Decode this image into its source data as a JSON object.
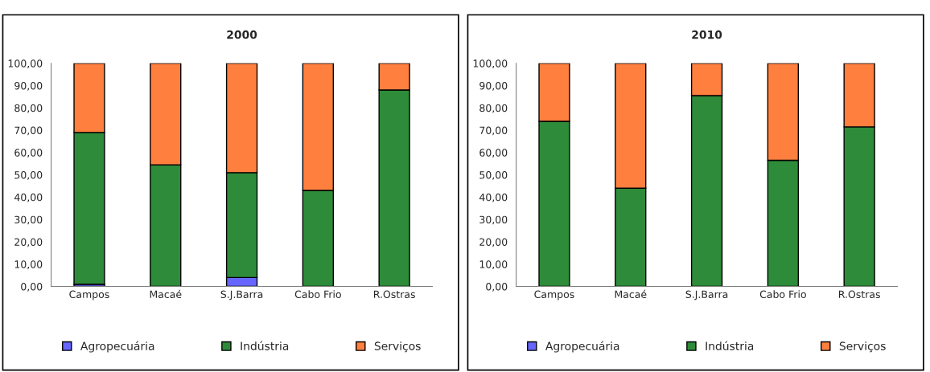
{
  "chart_data": [
    {
      "type": "bar",
      "title": "2000",
      "stacked": true,
      "legend": "bottom",
      "grid": false,
      "categories": [
        "Campos",
        "Macaé",
        "S.J.Barra",
        "Cabo Frio",
        "R.Ostras"
      ],
      "series": [
        {
          "name": "Agropecuária",
          "color": "#6666ff",
          "values": [
            1,
            0,
            4,
            0,
            0
          ]
        },
        {
          "name": "Indústria",
          "color": "#2e8b3a",
          "values": [
            68,
            54.5,
            47,
            43,
            88
          ]
        },
        {
          "name": "Serviços",
          "color": "#ff7f3f",
          "values": [
            31,
            45.5,
            49,
            57,
            12
          ]
        }
      ],
      "ylim": [
        0,
        100
      ],
      "yticks": [
        {
          "value": 0,
          "label": "0,00"
        },
        {
          "value": 10,
          "label": "10,00"
        },
        {
          "value": 20,
          "label": "20,00"
        },
        {
          "value": 30,
          "label": "30,00"
        },
        {
          "value": 40,
          "label": "40,00"
        },
        {
          "value": 50,
          "label": "50,00"
        },
        {
          "value": 60,
          "label": "60,00"
        },
        {
          "value": 70,
          "label": "70,00"
        },
        {
          "value": 80,
          "label": "80,00"
        },
        {
          "value": 90,
          "label": "90,00"
        },
        {
          "value": 100,
          "label": "100,00"
        }
      ]
    },
    {
      "type": "bar",
      "title": "2010",
      "stacked": true,
      "legend": "bottom",
      "grid": false,
      "categories": [
        "Campos",
        "Macaé",
        "S.J.Barra",
        "Cabo Frio",
        "R.Ostras"
      ],
      "series": [
        {
          "name": "Agropecuária",
          "color": "#6666ff",
          "values": [
            0,
            0,
            0,
            0,
            0
          ]
        },
        {
          "name": "Indústria",
          "color": "#2e8b3a",
          "values": [
            74,
            44,
            85.5,
            56.5,
            71.5
          ]
        },
        {
          "name": "Serviços",
          "color": "#ff7f3f",
          "values": [
            26,
            56,
            14.5,
            43.5,
            28.5
          ]
        }
      ],
      "ylim": [
        0,
        100
      ],
      "yticks": [
        {
          "value": 0,
          "label": "0,00"
        },
        {
          "value": 10,
          "label": "10,00"
        },
        {
          "value": 20,
          "label": "20,00"
        },
        {
          "value": 30,
          "label": "30,00"
        },
        {
          "value": 40,
          "label": "40,00"
        },
        {
          "value": 50,
          "label": "50,00"
        },
        {
          "value": 60,
          "label": "60,00"
        },
        {
          "value": 70,
          "label": "70,00"
        },
        {
          "value": 80,
          "label": "80,00"
        },
        {
          "value": 90,
          "label": "90,00"
        },
        {
          "value": 100,
          "label": "100,00"
        }
      ]
    }
  ]
}
